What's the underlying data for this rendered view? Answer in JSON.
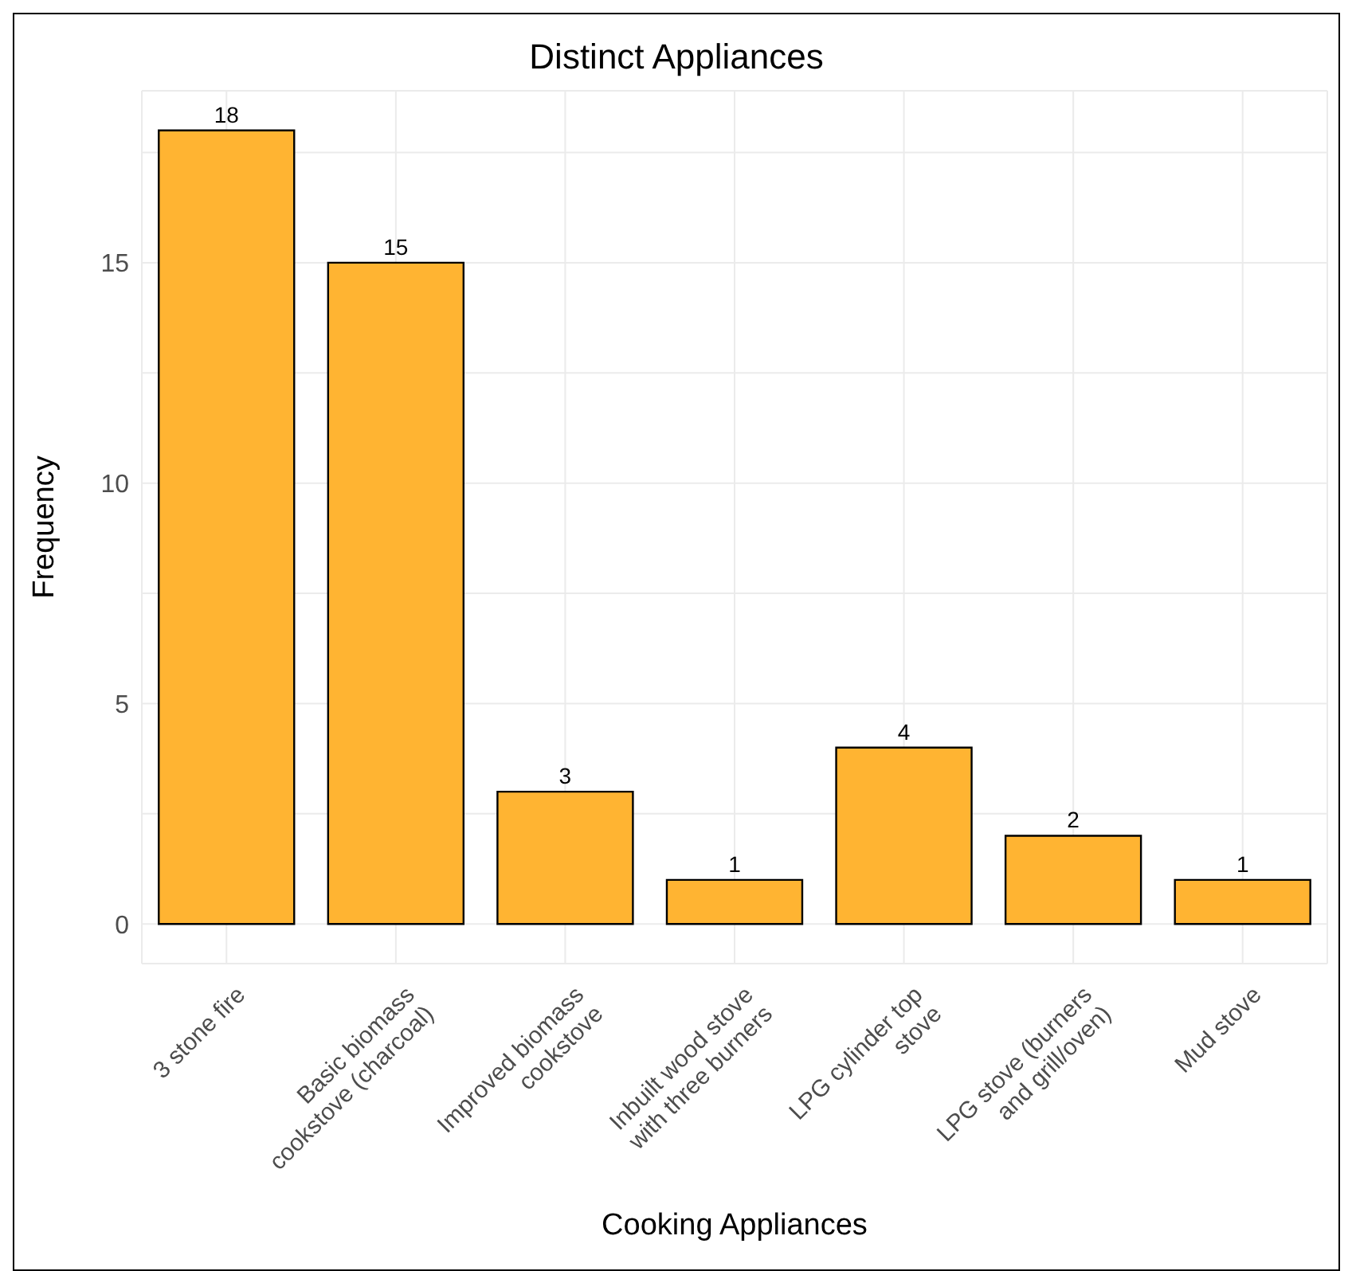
{
  "chart_data": {
    "type": "bar",
    "title": "Distinct Appliances",
    "xlabel": "Cooking Appliances",
    "ylabel": "Frequency",
    "categories": [
      "3 stone fire",
      "Basic biomass\ncookstove (charcoal)",
      "Improved biomass\ncookstove",
      "Inbuilt wood stove\nwith three burners",
      "LPG cylinder top\nstove",
      "LPG stove (burners\nand grill/oven)",
      "Mud stove"
    ],
    "values": [
      18,
      15,
      3,
      1,
      4,
      2,
      1
    ],
    "color": "#ffb432",
    "ylim": [
      -0.9,
      18.9
    ],
    "yticks": [
      0,
      {
        "value": 2.5,
        "label": null
      },
      5,
      {
        "value": 7.5,
        "label": null
      },
      10,
      {
        "value": 12.5,
        "label": null
      },
      15,
      {
        "value": 17.5,
        "label": null
      }
    ],
    "grid": true,
    "data_labels": true
  }
}
